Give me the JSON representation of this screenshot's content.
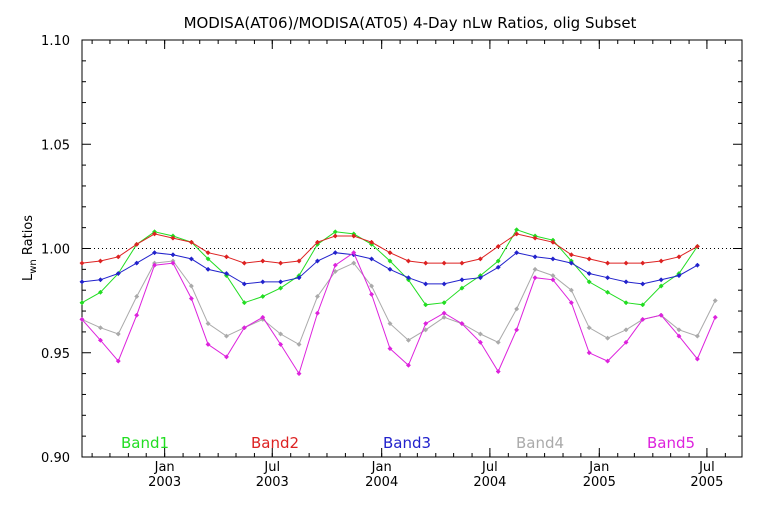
{
  "chart_data": {
    "type": "line",
    "title": "MODISA(AT06)/MODISA(AT05) 4-Day nLw Ratios, olig Subset",
    "ylabel_main": "L",
    "ylabel_sub": "wn",
    "ylabel_rest": " Ratios",
    "xlabel": "",
    "ylim": [
      0.9,
      1.1
    ],
    "xlim": [
      "2002-08-15",
      "2005-08-29"
    ],
    "yticks": [
      "0.90",
      "0.95",
      "1.00",
      "1.05",
      "1.10"
    ],
    "xticks": [
      {
        "date": "2003-01-01",
        "month": "Jan",
        "year": "2003"
      },
      {
        "date": "2003-07-01",
        "month": "Jul",
        "year": "2003"
      },
      {
        "date": "2004-01-01",
        "month": "Jan",
        "year": "2004"
      },
      {
        "date": "2004-07-01",
        "month": "Jul",
        "year": "2004"
      },
      {
        "date": "2005-01-01",
        "month": "Jan",
        "year": "2005"
      },
      {
        "date": "2005-07-01",
        "month": "Jul",
        "year": "2005"
      }
    ],
    "reference_line": 1.0,
    "x": [
      "2002-08-15",
      "2002-09-15",
      "2002-10-15",
      "2002-11-15",
      "2002-12-15",
      "2003-01-15",
      "2003-02-15",
      "2003-03-15",
      "2003-04-15",
      "2003-05-15",
      "2003-06-15",
      "2003-07-15",
      "2003-08-15",
      "2003-09-15",
      "2003-10-15",
      "2003-11-15",
      "2003-12-15",
      "2004-01-15",
      "2004-02-15",
      "2004-03-15",
      "2004-04-15",
      "2004-05-15",
      "2004-06-15",
      "2004-07-15",
      "2004-08-15",
      "2004-09-15",
      "2004-10-15",
      "2004-11-15",
      "2004-12-15",
      "2005-01-15",
      "2005-02-15",
      "2005-03-15",
      "2005-04-15",
      "2005-05-15",
      "2005-06-15",
      "2005-07-15",
      "2005-08-15",
      "2005-08-29"
    ],
    "series": [
      {
        "name": "Band1",
        "color": "#22dd22",
        "values": [
          0.974,
          0.979,
          0.988,
          1.002,
          1.008,
          1.006,
          1.003,
          0.995,
          0.987,
          0.974,
          0.977,
          0.981,
          0.987,
          1.002,
          1.008,
          1.007,
          1.002,
          0.994,
          0.985,
          0.973,
          0.974,
          0.981,
          0.987,
          0.994,
          1.009,
          1.006,
          1.004,
          0.994,
          0.984,
          0.979,
          0.974,
          0.973,
          0.982,
          0.988,
          1.001,
          null,
          null,
          null
        ]
      },
      {
        "name": "Band2",
        "color": "#dd2222",
        "values": [
          0.993,
          0.994,
          0.996,
          1.002,
          1.007,
          1.005,
          1.003,
          0.998,
          0.996,
          0.993,
          0.994,
          0.993,
          0.994,
          1.003,
          1.006,
          1.006,
          1.003,
          0.998,
          0.994,
          0.993,
          0.993,
          0.993,
          0.995,
          1.001,
          1.007,
          1.005,
          1.003,
          0.997,
          0.995,
          0.993,
          0.993,
          0.993,
          0.994,
          0.996,
          1.001,
          null,
          null,
          null
        ]
      },
      {
        "name": "Band3",
        "color": "#2222cc",
        "values": [
          0.984,
          0.985,
          0.988,
          0.993,
          0.998,
          0.997,
          0.995,
          0.99,
          0.988,
          0.983,
          0.984,
          0.984,
          0.986,
          0.994,
          0.998,
          0.997,
          0.995,
          0.99,
          0.986,
          0.983,
          0.983,
          0.985,
          0.986,
          0.991,
          0.998,
          0.996,
          0.995,
          0.993,
          0.988,
          0.986,
          0.984,
          0.983,
          0.985,
          0.987,
          0.992,
          null,
          null,
          null
        ]
      },
      {
        "name": "Band4",
        "color": "#aaaaaa",
        "values": [
          0.966,
          0.962,
          0.959,
          0.977,
          0.993,
          0.994,
          0.982,
          0.964,
          0.958,
          0.962,
          0.966,
          0.959,
          0.954,
          0.977,
          0.989,
          0.993,
          0.982,
          0.964,
          0.956,
          0.961,
          0.967,
          0.964,
          0.959,
          0.955,
          0.971,
          0.99,
          0.987,
          0.98,
          0.962,
          0.957,
          0.961,
          0.966,
          0.968,
          0.961,
          0.958,
          0.975,
          null,
          null
        ]
      },
      {
        "name": "Band5",
        "color": "#dd22dd",
        "values": [
          0.966,
          0.956,
          0.946,
          0.968,
          0.992,
          0.993,
          0.976,
          0.954,
          0.948,
          0.962,
          0.967,
          0.954,
          0.94,
          0.969,
          0.992,
          0.998,
          0.978,
          0.952,
          0.944,
          0.964,
          0.969,
          0.964,
          0.955,
          0.941,
          0.961,
          0.986,
          0.985,
          0.974,
          0.95,
          0.946,
          0.955,
          0.966,
          0.968,
          0.958,
          0.947,
          0.967,
          null,
          null
        ]
      }
    ],
    "legend_position": "bottom",
    "grid": false
  }
}
